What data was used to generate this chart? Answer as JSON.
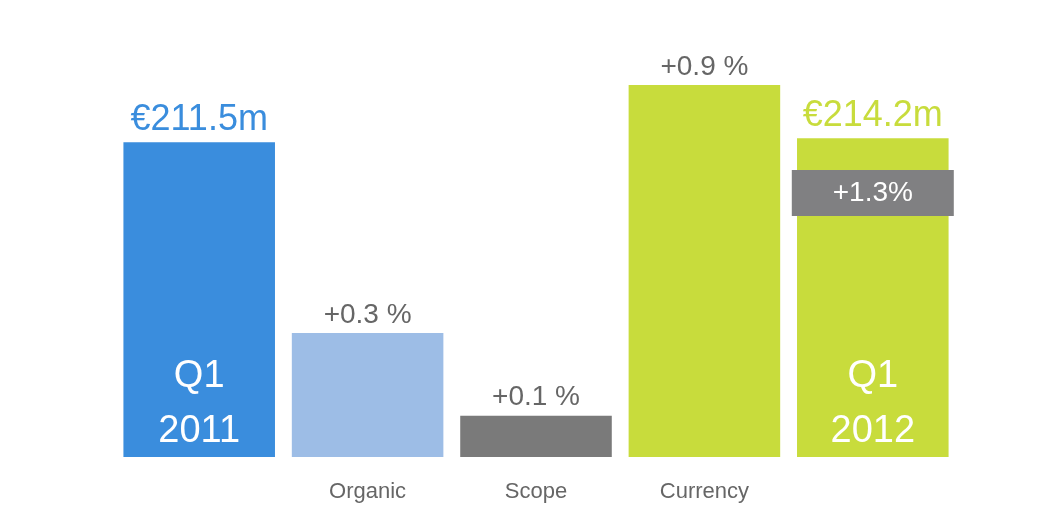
{
  "chart_data": {
    "type": "bar",
    "categories": [
      "Q1 2011",
      "Organic",
      "Scope",
      "Currency",
      "Q1 2012"
    ],
    "series": [
      {
        "colors": [
          "#3a8ddd",
          null,
          null,
          null,
          "#c8dc3c"
        ],
        "values": [
          211.5,
          null,
          null,
          null,
          214.2
        ],
        "value_labels": [
          "€211.5m",
          null,
          null,
          null,
          "€214.2m"
        ]
      },
      {
        "type": "bar",
        "axis": "y2",
        "colors": [
          null,
          "#9dbde6",
          "#7a7a7a",
          "#c8dc3c",
          null
        ],
        "values": [
          null,
          0.3,
          0.1,
          0.9,
          null
        ],
        "value_labels": [
          null,
          "+0.3 %",
          "+0.1 %",
          "+0.9 %",
          null
        ]
      }
    ],
    "annotations": [
      "+1.3%"
    ],
    "legend": false
  }
}
